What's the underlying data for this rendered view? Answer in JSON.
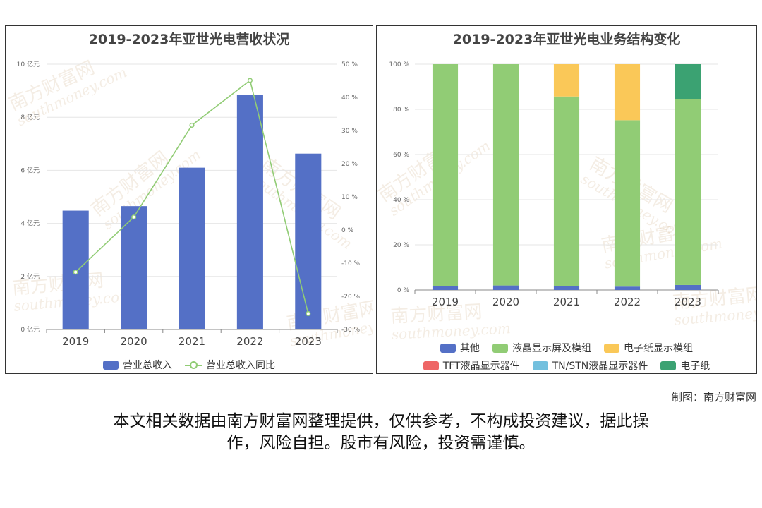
{
  "colors": {
    "revenue_bar": "#5470c6",
    "yoy_line": "#91cc75",
    "other": "#5470c6",
    "lcd_module": "#91cc75",
    "epaper_module": "#fac858",
    "tft": "#ee6666",
    "tn_stn": "#73c0de",
    "epaper": "#3ba272"
  },
  "chart_data": [
    {
      "type": "bar",
      "title": "2019-2023年亚世光电营收状况",
      "categories": [
        "2019",
        "2020",
        "2021",
        "2022",
        "2023"
      ],
      "series": [
        {
          "name": "营业总收入",
          "type": "bar",
          "axis": "left",
          "values": [
            4.48,
            4.65,
            6.1,
            8.85,
            6.63
          ]
        },
        {
          "name": "营业总收入同比",
          "type": "line",
          "axis": "right",
          "values": [
            -12.7,
            3.9,
            31.6,
            45.1,
            -25.2
          ]
        }
      ],
      "left_axis": {
        "ylim": [
          0,
          10
        ],
        "ticks": [
          "0 亿元",
          "2 亿元",
          "4 亿元",
          "6 亿元",
          "8 亿元",
          "10 亿元"
        ]
      },
      "right_axis": {
        "ylim": [
          -30,
          50
        ],
        "ticks": [
          "-30 %",
          "-20 %",
          "-10 %",
          "0 %",
          "10 %",
          "20 %",
          "30 %",
          "40 %",
          "50 %"
        ]
      },
      "grid": true,
      "legend_position": "bottom"
    },
    {
      "type": "bar",
      "stacked": true,
      "title": "2019-2023年亚世光电业务结构变化",
      "categories": [
        "2019",
        "2020",
        "2021",
        "2022",
        "2023"
      ],
      "series": [
        {
          "name": "其他",
          "values": [
            1.8,
            2.0,
            1.6,
            1.5,
            2.2
          ]
        },
        {
          "name": "液晶显示屏及模组",
          "values": [
            98.2,
            98.0,
            84.1,
            73.7,
            82.4
          ]
        },
        {
          "name": "电子纸显示模组",
          "values": [
            0,
            0,
            14.3,
            24.8,
            0
          ]
        },
        {
          "name": "TFT液晶显示器件",
          "values": [
            0,
            0,
            0,
            0,
            0
          ]
        },
        {
          "name": "TN/STN液晶显示器件",
          "values": [
            0,
            0,
            0,
            0,
            0
          ]
        },
        {
          "name": "电子纸",
          "values": [
            0,
            0,
            0,
            0,
            15.4
          ]
        }
      ],
      "y_axis": {
        "ylim": [
          0,
          100
        ],
        "ticks": [
          "0 %",
          "20 %",
          "40 %",
          "60 %",
          "80 %",
          "100 %"
        ]
      },
      "grid": true,
      "legend_position": "bottom"
    }
  ],
  "footer": {
    "credit": "制图：南方财富网",
    "disclaimer_line1": "本文相关数据由南方财富网整理提供，仅供参考，不构成投资建议，据此操",
    "disclaimer_line2": "作，风险自担。股市有风险，投资需谨慎。"
  },
  "watermark": {
    "text": "南方财富网",
    "subtext": "southmoney.com"
  }
}
